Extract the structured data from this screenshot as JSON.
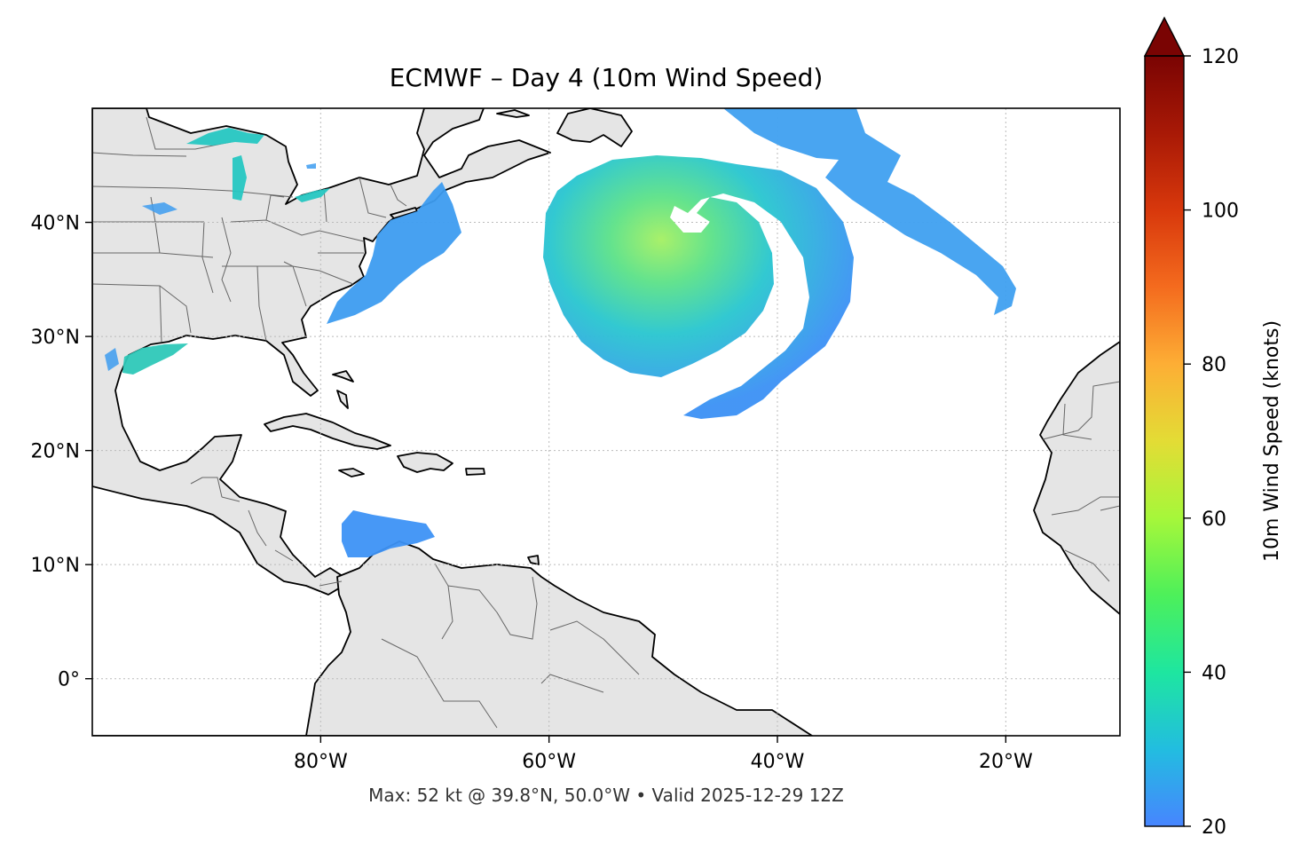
{
  "title": "ECMWF – Day 4 (10m Wind Speed)",
  "footer": "Max: 52 kt @ 39.8°N, 50.0°W • Valid 2025-12-29 12Z",
  "map": {
    "lon_range": [
      -100,
      -10
    ],
    "lat_range": [
      -5,
      50
    ],
    "gridlines": true,
    "land_color": "#e5e5e5",
    "ocean_color": "#ffffff",
    "coast_color": "#000000",
    "border_color": "#666666",
    "lon_ticks": [
      {
        "value": -80,
        "label": "80°W"
      },
      {
        "value": -60,
        "label": "60°W"
      },
      {
        "value": -40,
        "label": "40°W"
      },
      {
        "value": -20,
        "label": "20°W"
      }
    ],
    "lat_ticks": [
      {
        "value": 40,
        "label": "40°N"
      },
      {
        "value": 30,
        "label": "30°N"
      },
      {
        "value": 20,
        "label": "20°N"
      },
      {
        "value": 10,
        "label": "10°N"
      },
      {
        "value": 0,
        "label": "0°"
      }
    ]
  },
  "colorbar": {
    "label": "10m Wind Speed (knots)",
    "min": 20,
    "max": 120,
    "extend": "max",
    "ticks": [
      {
        "value": 20,
        "label": "20"
      },
      {
        "value": 40,
        "label": "40"
      },
      {
        "value": 60,
        "label": "60"
      },
      {
        "value": 80,
        "label": "80"
      },
      {
        "value": 100,
        "label": "100"
      },
      {
        "value": 120,
        "label": "120"
      }
    ],
    "colors": [
      "#4785ff",
      "#22bde0",
      "#1ee6a0",
      "#4df05a",
      "#a6f73a",
      "#e3dc35",
      "#fdae35",
      "#f46b1e",
      "#d8380c",
      "#a81906",
      "#7a0403"
    ]
  },
  "wind_max": {
    "speed_kt": 52,
    "lat": 39.8,
    "lon": -50.0
  }
}
